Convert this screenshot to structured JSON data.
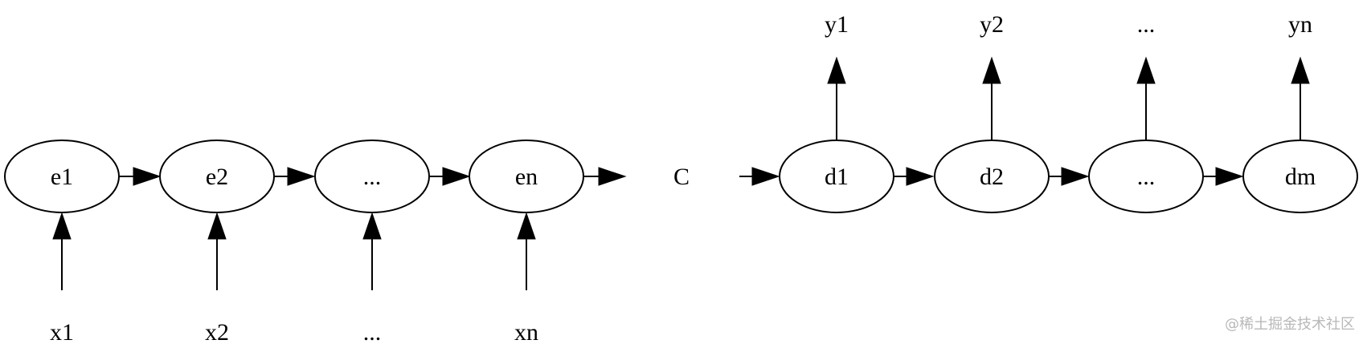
{
  "encoder": {
    "nodes": [
      "e1",
      "e2",
      "...",
      "en"
    ],
    "inputs": [
      "x1",
      "x2",
      "...",
      "xn"
    ]
  },
  "context": {
    "label": "C"
  },
  "decoder": {
    "nodes": [
      "d1",
      "d2",
      "...",
      "dm"
    ],
    "outputs": [
      "y1",
      "y2",
      "...",
      "yn"
    ]
  },
  "watermark": "@稀土掘金技术社区",
  "colors": {
    "stroke": "#000000",
    "fill": "#ffffff",
    "watermark": "#b8b8b8"
  }
}
